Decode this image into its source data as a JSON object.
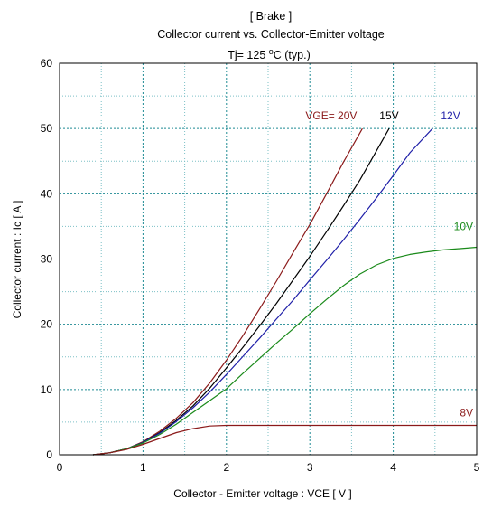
{
  "chart_data": {
    "type": "line",
    "title_line1": "[ Brake ]",
    "title_line2": "Collector current  vs.  Collector-Emitter voltage",
    "condition_prefix": "Tj= 125 ",
    "condition_deg": "o",
    "condition_suffix": "C  (typ.)",
    "xlabel": "Collector - Emitter voltage  :  VCE  [ V ]",
    "ylabel": "Collector current  :  Ic  [ A ]",
    "xlim": [
      0,
      5
    ],
    "ylim": [
      0,
      60
    ],
    "x_ticks": [
      "0",
      "1",
      "2",
      "3",
      "4",
      "5"
    ],
    "y_ticks": [
      "0",
      "10",
      "20",
      "30",
      "40",
      "50",
      "60"
    ],
    "grid": true,
    "series": [
      {
        "name": "VGE= 20V",
        "color": "#8b1a1a",
        "x": [
          0.4,
          0.6,
          0.8,
          1.0,
          1.2,
          1.4,
          1.6,
          1.8,
          2.0,
          2.2,
          2.4,
          2.6,
          2.8,
          3.0,
          3.2,
          3.4,
          3.63
        ],
        "y": [
          0,
          0.3,
          0.9,
          2.0,
          3.6,
          5.6,
          8.0,
          11.0,
          14.5,
          18.3,
          22.4,
          26.6,
          31.0,
          35.3,
          40.0,
          44.8,
          50
        ]
      },
      {
        "name": "15V",
        "color": "#000000",
        "x": [
          0.4,
          0.6,
          0.8,
          1.0,
          1.2,
          1.4,
          1.6,
          1.8,
          2.0,
          2.2,
          2.4,
          2.6,
          2.8,
          3.0,
          3.2,
          3.4,
          3.6,
          3.8,
          3.95
        ],
        "y": [
          0,
          0.3,
          0.9,
          1.9,
          3.4,
          5.3,
          7.5,
          10.2,
          13.3,
          16.5,
          19.8,
          23.2,
          26.8,
          30.4,
          34.2,
          38.1,
          42.1,
          46.6,
          50
        ]
      },
      {
        "name": "12V",
        "color": "#1f1fa8",
        "x": [
          0.4,
          0.6,
          0.8,
          1.0,
          1.2,
          1.4,
          1.6,
          1.8,
          2.0,
          2.2,
          2.4,
          2.6,
          2.8,
          3.0,
          3.2,
          3.4,
          3.6,
          3.8,
          4.0,
          4.2,
          4.47
        ],
        "y": [
          0,
          0.3,
          0.9,
          1.9,
          3.3,
          5.1,
          7.2,
          9.6,
          12.3,
          15.1,
          17.9,
          20.8,
          23.7,
          26.8,
          29.8,
          32.9,
          36.1,
          39.4,
          42.8,
          46.3,
          50
        ]
      },
      {
        "name": "10V",
        "color": "#1a8a1a",
        "x": [
          0.4,
          0.6,
          0.8,
          1.0,
          1.2,
          1.4,
          1.6,
          1.8,
          2.0,
          2.2,
          2.4,
          2.6,
          2.8,
          3.0,
          3.2,
          3.4,
          3.6,
          3.8,
          4.0,
          4.2,
          4.4,
          4.6,
          4.8,
          5.0
        ],
        "y": [
          0,
          0.3,
          0.9,
          1.8,
          3.1,
          4.7,
          6.5,
          8.3,
          10.1,
          12.5,
          14.8,
          17.1,
          19.3,
          21.6,
          23.8,
          25.9,
          27.7,
          29.1,
          30.1,
          30.7,
          31.1,
          31.4,
          31.6,
          31.8
        ]
      },
      {
        "name": "8V",
        "color": "#8b1a1a",
        "x": [
          0.4,
          0.6,
          0.8,
          1.0,
          1.2,
          1.4,
          1.6,
          1.8,
          2.0,
          2.5,
          3.0,
          3.5,
          4.0,
          4.5,
          5.0
        ],
        "y": [
          0,
          0.3,
          0.8,
          1.6,
          2.5,
          3.4,
          4.0,
          4.4,
          4.5,
          4.5,
          4.5,
          4.5,
          4.5,
          4.5,
          4.5
        ]
      }
    ]
  }
}
